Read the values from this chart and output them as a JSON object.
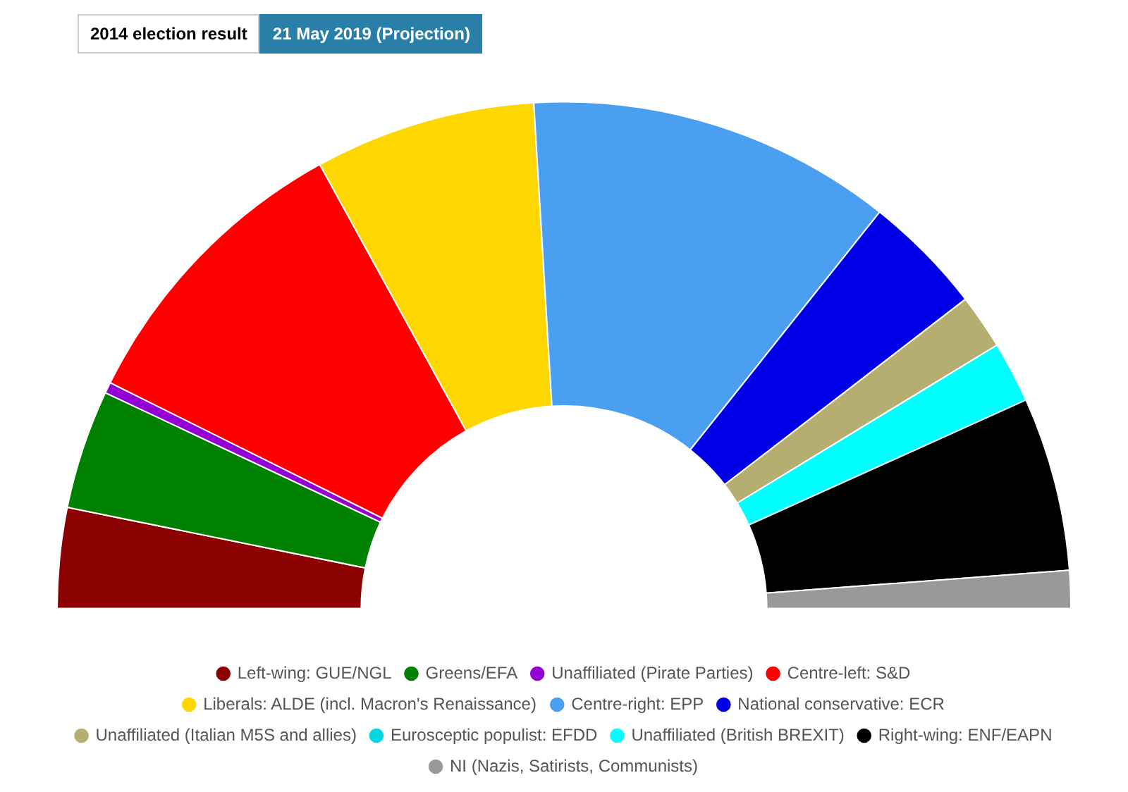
{
  "chart_data": {
    "type": "donut",
    "annotations": [
      "2014 election result",
      "21 May 2019 (Projection)"
    ],
    "categories": [
      "Left-wing: GUE/NGL",
      "Greens/EFA",
      "Unaffiliated (Pirate Parties)",
      "Centre-left: S&D",
      "Liberals: ALDE (incl. Macron's Renaissance)",
      "Centre-right: EPP",
      "National conservative: ECR",
      "Unaffiliated (Italian M5S and allies)",
      "Eurosceptic populist: EFDD",
      "Unaffiliated (British BREXIT)",
      "Right-wing: ENF/EAPN",
      "NI (Nazis, Satirists, Communists)"
    ],
    "values": [
      6.4,
      7.6,
      0.7,
      19.3,
      14.1,
      23.3,
      7.7,
      3.5,
      0,
      3.9,
      11.1,
      2.4
    ],
    "colors": [
      "#8b0000",
      "#008000",
      "#9400d3",
      "#ff0000",
      "#ffd700",
      "#4a9ff0",
      "#0000e6",
      "#b5ae70",
      "#00d8e0",
      "#00ffff",
      "#000000",
      "#999999"
    ],
    "legend": "bottom"
  }
}
